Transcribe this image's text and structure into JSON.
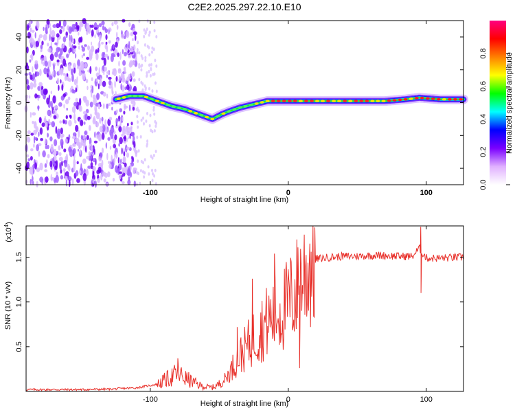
{
  "title": "C2E2.2025.297.22.10.E10",
  "chart_data": [
    {
      "type": "heatmap",
      "name": "spectrogram",
      "xlabel": "Height of straight line (km)",
      "ylabel": "Frequency (Hz)",
      "xlim": [
        -190,
        127
      ],
      "ylim": [
        -50,
        50
      ],
      "x_ticks": [
        -100,
        0,
        100
      ],
      "y_ticks": [
        -40,
        -20,
        0,
        20,
        40
      ],
      "colorbar": {
        "label": "Normalized spectral amplitude",
        "range": [
          0,
          1
        ],
        "ticks": [
          "0.0",
          "0.2",
          "0.4",
          "0.6",
          "0.8"
        ],
        "tick_values": [
          0.0,
          0.2,
          0.4,
          0.6,
          0.8
        ],
        "colors": [
          "#ffffff",
          "#e0b0ff",
          "#7a00ff",
          "#0000ff",
          "#00ffff",
          "#00ff00",
          "#ffff00",
          "#ff8000",
          "#ff0000",
          "#ff0080"
        ]
      },
      "ridge": {
        "heights_km": [
          -125,
          -115,
          -105,
          -95,
          -85,
          -75,
          -65,
          -55,
          -48,
          -42,
          -35,
          -25,
          -15,
          -5,
          0,
          10,
          30,
          50,
          70,
          85,
          95,
          110,
          127
        ],
        "frequency_hz": [
          2,
          4,
          4,
          1,
          -2,
          -4,
          -7,
          -10,
          -7,
          -5,
          -3,
          -1,
          1,
          1,
          1,
          1,
          1,
          1,
          1,
          2,
          3,
          2,
          2
        ]
      }
    },
    {
      "type": "line",
      "name": "snr",
      "xlabel": "Height of straight line (km)",
      "ylabel": "SNR (10 * v/v)",
      "y_exponent": "(x10",
      "y_exponent_power": "4",
      "y_exponent_close": ")",
      "xlim": [
        -190,
        127
      ],
      "ylim": [
        0,
        18500
      ],
      "x_ticks": [
        -100,
        0,
        100
      ],
      "y_ticks": [
        5000,
        10000,
        15000
      ],
      "y_tick_labels": [
        "0.5",
        "1.0",
        "1.5"
      ],
      "color": "#e8302a",
      "series": [
        {
          "name": "SNR",
          "x": [
            -190,
            -150,
            -130,
            -110,
            -95,
            -90,
            -85,
            -80,
            -75,
            -70,
            -65,
            -60,
            -55,
            -50,
            -45,
            -40,
            -35,
            -30,
            -25,
            -20,
            -15,
            -10,
            -5,
            0,
            5,
            10,
            15,
            20,
            30,
            40,
            50,
            60,
            70,
            80,
            90,
            95,
            100,
            110,
            127
          ],
          "y": [
            200,
            200,
            250,
            400,
            800,
            1200,
            1600,
            2000,
            1500,
            1100,
            700,
            500,
            450,
            800,
            1500,
            2800,
            4000,
            5000,
            6000,
            7000,
            7800,
            8500,
            9000,
            9800,
            11000,
            12800,
            14000,
            14800,
            15000,
            15100,
            15100,
            15200,
            15200,
            15100,
            15100,
            16000,
            14900,
            14900,
            15000
          ]
        }
      ],
      "spikes": {
        "x": [
          -80,
          -37,
          -26,
          -10,
          7,
          96
        ],
        "y": [
          3700,
          7200,
          12600,
          15400,
          16100,
          18400
        ],
        "dip_x": [
          8,
          96
        ],
        "dip_y": [
          2600,
          11000
        ]
      }
    }
  ]
}
